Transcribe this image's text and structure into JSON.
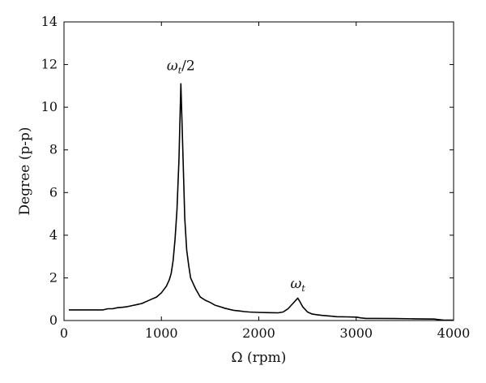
{
  "chart_data": {
    "type": "line",
    "xlabel": "Ω (rpm)",
    "ylabel": "Degree (p-p)",
    "xlim": [
      0,
      4000
    ],
    "ylim": [
      0,
      14
    ],
    "xticks": [
      0,
      1000,
      2000,
      3000,
      4000
    ],
    "yticks": [
      0,
      2,
      4,
      6,
      8,
      10,
      12,
      14
    ],
    "grid": false,
    "annotations": [
      {
        "base": "ω",
        "sub": "t",
        "suffix": "/2",
        "x": 1200,
        "y": 11.5
      },
      {
        "base": "ω",
        "sub": "t",
        "suffix": "",
        "x": 2400,
        "y": 1.3
      }
    ],
    "series": [
      {
        "x": [
          50,
          400,
          450,
          500,
          550,
          600,
          650,
          700,
          750,
          800,
          850,
          900,
          950,
          1000,
          1050,
          1080,
          1100,
          1120,
          1140,
          1160,
          1180,
          1200,
          1220,
          1240,
          1260,
          1280,
          1300,
          1350,
          1400,
          1450,
          1500,
          1550,
          1600,
          1650,
          1700,
          1750,
          1800,
          1850,
          1900,
          2000,
          2100,
          2200,
          2250,
          2300,
          2350,
          2400,
          2420,
          2450,
          2500,
          2550,
          2600,
          2650,
          2700,
          2750,
          2800,
          2900,
          3000,
          3050,
          3100,
          3200,
          3400,
          3600,
          3800,
          3850,
          3900,
          4000
        ],
        "y": [
          0.5,
          0.5,
          0.55,
          0.55,
          0.6,
          0.62,
          0.65,
          0.7,
          0.75,
          0.8,
          0.9,
          1.0,
          1.1,
          1.3,
          1.6,
          1.9,
          2.2,
          2.8,
          3.8,
          5.2,
          7.5,
          11.1,
          8.0,
          4.8,
          3.3,
          2.6,
          2.0,
          1.5,
          1.1,
          0.95,
          0.85,
          0.72,
          0.65,
          0.58,
          0.52,
          0.47,
          0.45,
          0.42,
          0.4,
          0.38,
          0.37,
          0.36,
          0.4,
          0.55,
          0.8,
          1.05,
          0.9,
          0.65,
          0.4,
          0.3,
          0.27,
          0.24,
          0.22,
          0.2,
          0.18,
          0.17,
          0.16,
          0.12,
          0.1,
          0.1,
          0.09,
          0.08,
          0.07,
          0.04,
          0.02,
          0.02
        ]
      }
    ]
  }
}
